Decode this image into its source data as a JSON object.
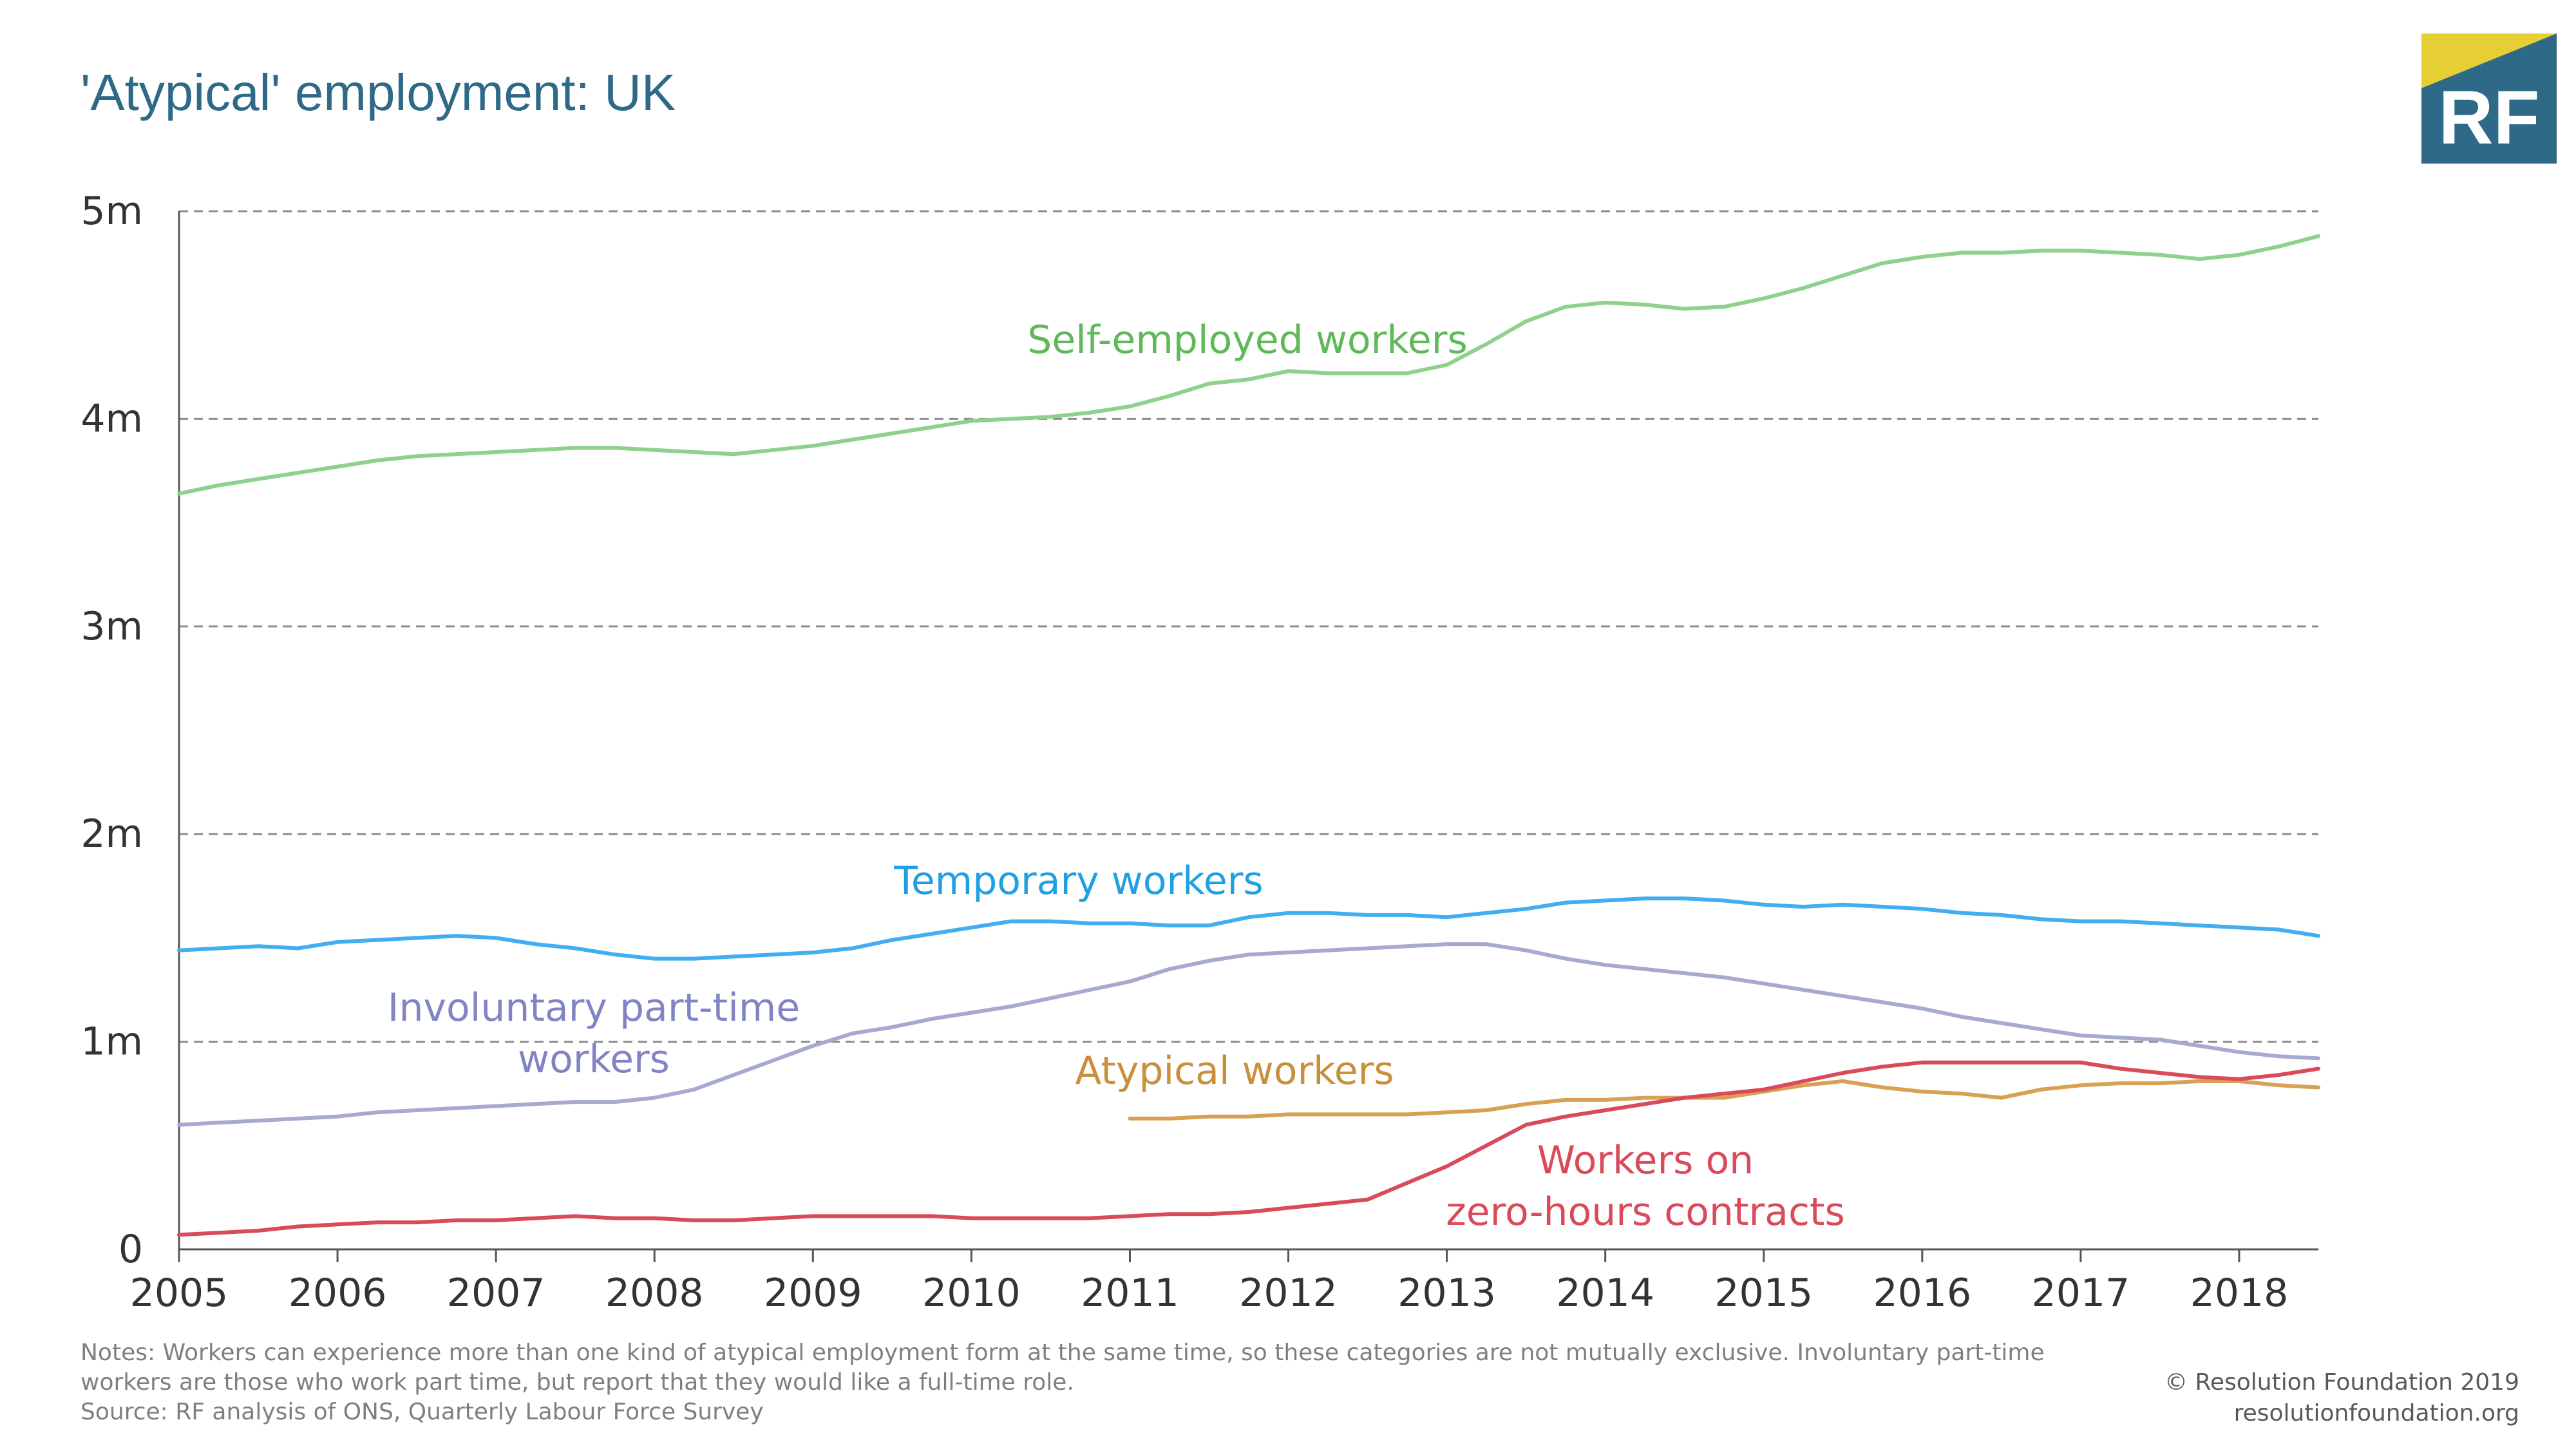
{
  "title": "'Atypical' employment: UK",
  "logo": {
    "text": "RF",
    "colors": {
      "box": "#2e6a87",
      "accent": "#e6cf34"
    }
  },
  "footer": {
    "notes": "Notes: Workers can experience more than one kind of atypical employment form at the same time, so these categories are not mutually exclusive. Involuntary part-time workers are those who work part time, but report that they would like a full-time role.",
    "source": "Source: RF analysis of ONS, Quarterly Labour Force Survey",
    "copyright": "© Resolution Foundation 2019",
    "website": "resolutionfoundation.org"
  },
  "chart_data": {
    "type": "line",
    "title": "'Atypical' employment: UK",
    "xlabel": "",
    "ylabel": "",
    "xlim": [
      2005,
      2018.5
    ],
    "ylim": [
      0,
      5
    ],
    "x_ticks": [
      2005,
      2006,
      2007,
      2008,
      2009,
      2010,
      2011,
      2012,
      2013,
      2014,
      2015,
      2016,
      2017,
      2018
    ],
    "y_ticks": [
      {
        "value": 0,
        "label": "0"
      },
      {
        "value": 1,
        "label": "1m"
      },
      {
        "value": 2,
        "label": "2m"
      },
      {
        "value": 3,
        "label": "3m"
      },
      {
        "value": 4,
        "label": "4m"
      },
      {
        "value": 5,
        "label": "5m"
      }
    ],
    "grid": true,
    "series": [
      {
        "name": "Self-employed workers",
        "label_lines": [
          "Self-employed workers"
        ],
        "color": "#8fd18b",
        "label_color": "#5fb85a",
        "x": [
          2005,
          2005.25,
          2005.5,
          2005.75,
          2006,
          2006.25,
          2006.5,
          2006.75,
          2007,
          2007.25,
          2007.5,
          2007.75,
          2008,
          2008.25,
          2008.5,
          2008.75,
          2009,
          2009.25,
          2009.5,
          2009.75,
          2010,
          2010.25,
          2010.5,
          2010.75,
          2011,
          2011.25,
          2011.5,
          2011.75,
          2012,
          2012.25,
          2012.5,
          2012.75,
          2013,
          2013.25,
          2013.5,
          2013.75,
          2014,
          2014.25,
          2014.5,
          2014.75,
          2015,
          2015.25,
          2015.5,
          2015.75,
          2016,
          2016.25,
          2016.5,
          2016.75,
          2017,
          2017.25,
          2017.5,
          2017.75,
          2018,
          2018.25,
          2018.5
        ],
        "y": [
          3.64,
          3.68,
          3.71,
          3.74,
          3.77,
          3.8,
          3.82,
          3.83,
          3.84,
          3.85,
          3.86,
          3.86,
          3.85,
          3.84,
          3.83,
          3.85,
          3.87,
          3.9,
          3.93,
          3.96,
          3.99,
          4.0,
          4.01,
          4.03,
          4.06,
          4.11,
          4.17,
          4.19,
          4.23,
          4.22,
          4.22,
          4.22,
          4.26,
          4.36,
          4.47,
          4.54,
          4.56,
          4.55,
          4.53,
          4.54,
          4.58,
          4.63,
          4.69,
          4.75,
          4.78,
          4.8,
          4.8,
          4.81,
          4.81,
          4.8,
          4.79,
          4.77,
          4.79,
          4.83,
          4.88
        ]
      },
      {
        "name": "Temporary workers",
        "label_lines": [
          "Temporary workers"
        ],
        "color": "#42aef0",
        "label_color": "#1fa0e4",
        "x": [
          2005,
          2005.25,
          2005.5,
          2005.75,
          2006,
          2006.25,
          2006.5,
          2006.75,
          2007,
          2007.25,
          2007.5,
          2007.75,
          2008,
          2008.25,
          2008.5,
          2008.75,
          2009,
          2009.25,
          2009.5,
          2009.75,
          2010,
          2010.25,
          2010.5,
          2010.75,
          2011,
          2011.25,
          2011.5,
          2011.75,
          2012,
          2012.25,
          2012.5,
          2012.75,
          2013,
          2013.25,
          2013.5,
          2013.75,
          2014,
          2014.25,
          2014.5,
          2014.75,
          2015,
          2015.25,
          2015.5,
          2015.75,
          2016,
          2016.25,
          2016.5,
          2016.75,
          2017,
          2017.25,
          2017.5,
          2017.75,
          2018,
          2018.25,
          2018.5
        ],
        "y": [
          1.44,
          1.45,
          1.46,
          1.45,
          1.48,
          1.49,
          1.5,
          1.51,
          1.5,
          1.47,
          1.45,
          1.42,
          1.4,
          1.4,
          1.41,
          1.42,
          1.43,
          1.45,
          1.49,
          1.52,
          1.55,
          1.58,
          1.58,
          1.57,
          1.57,
          1.56,
          1.56,
          1.6,
          1.62,
          1.62,
          1.61,
          1.61,
          1.6,
          1.62,
          1.64,
          1.67,
          1.68,
          1.69,
          1.69,
          1.68,
          1.66,
          1.65,
          1.66,
          1.65,
          1.64,
          1.62,
          1.61,
          1.59,
          1.58,
          1.58,
          1.57,
          1.56,
          1.55,
          1.54,
          1.51
        ]
      },
      {
        "name": "Involuntary part-time workers",
        "label_lines": [
          "Involuntary part-time",
          "workers"
        ],
        "color": "#a6a9d0",
        "label_color": "#8184c3",
        "x": [
          2005,
          2005.25,
          2005.5,
          2005.75,
          2006,
          2006.25,
          2006.5,
          2006.75,
          2007,
          2007.25,
          2007.5,
          2007.75,
          2008,
          2008.25,
          2008.5,
          2008.75,
          2009,
          2009.25,
          2009.5,
          2009.75,
          2010,
          2010.25,
          2010.5,
          2010.75,
          2011,
          2011.25,
          2011.5,
          2011.75,
          2012,
          2012.25,
          2012.5,
          2012.75,
          2013,
          2013.25,
          2013.5,
          2013.75,
          2014,
          2014.25,
          2014.5,
          2014.75,
          2015,
          2015.25,
          2015.5,
          2015.75,
          2016,
          2016.25,
          2016.5,
          2016.75,
          2017,
          2017.25,
          2017.5,
          2017.75,
          2018,
          2018.25,
          2018.5
        ],
        "y": [
          0.6,
          0.61,
          0.62,
          0.63,
          0.64,
          0.66,
          0.67,
          0.68,
          0.69,
          0.7,
          0.71,
          0.71,
          0.73,
          0.77,
          0.84,
          0.91,
          0.98,
          1.04,
          1.07,
          1.11,
          1.14,
          1.17,
          1.21,
          1.25,
          1.29,
          1.35,
          1.39,
          1.42,
          1.43,
          1.44,
          1.45,
          1.46,
          1.47,
          1.47,
          1.44,
          1.4,
          1.37,
          1.35,
          1.33,
          1.31,
          1.28,
          1.25,
          1.22,
          1.19,
          1.16,
          1.12,
          1.09,
          1.06,
          1.03,
          1.02,
          1.01,
          0.98,
          0.95,
          0.93,
          0.92
        ]
      },
      {
        "name": "Atypical workers",
        "label_lines": [
          "Atypical workers"
        ],
        "color": "#d8a054",
        "label_color": "#c98f3a",
        "x": [
          2011,
          2011.25,
          2011.5,
          2011.75,
          2012,
          2012.25,
          2012.5,
          2012.75,
          2013,
          2013.25,
          2013.5,
          2013.75,
          2014,
          2014.25,
          2014.5,
          2014.75,
          2015,
          2015.25,
          2015.5,
          2015.75,
          2016,
          2016.25,
          2016.5,
          2016.75,
          2017,
          2017.25,
          2017.5,
          2017.75,
          2018,
          2018.25,
          2018.5
        ],
        "y": [
          0.63,
          0.63,
          0.64,
          0.64,
          0.65,
          0.65,
          0.65,
          0.65,
          0.66,
          0.67,
          0.7,
          0.72,
          0.72,
          0.73,
          0.73,
          0.73,
          0.76,
          0.79,
          0.81,
          0.78,
          0.76,
          0.75,
          0.73,
          0.77,
          0.79,
          0.8,
          0.8,
          0.81,
          0.81,
          0.79,
          0.78
        ]
      },
      {
        "name": "Workers on zero-hours contracts",
        "label_lines": [
          "Workers on",
          "zero-hours contracts"
        ],
        "color": "#d94b5a",
        "label_color": "#d94b5a",
        "x": [
          2005,
          2005.25,
          2005.5,
          2005.75,
          2006,
          2006.25,
          2006.5,
          2006.75,
          2007,
          2007.25,
          2007.5,
          2007.75,
          2008,
          2008.25,
          2008.5,
          2008.75,
          2009,
          2009.25,
          2009.5,
          2009.75,
          2010,
          2010.25,
          2010.5,
          2010.75,
          2011,
          2011.25,
          2011.5,
          2011.75,
          2012,
          2012.25,
          2012.5,
          2012.75,
          2013,
          2013.25,
          2013.5,
          2013.75,
          2014,
          2014.25,
          2014.5,
          2014.75,
          2015,
          2015.25,
          2015.5,
          2015.75,
          2016,
          2016.25,
          2016.5,
          2016.75,
          2017,
          2017.25,
          2017.5,
          2017.75,
          2018,
          2018.25,
          2018.5
        ],
        "y": [
          0.07,
          0.08,
          0.09,
          0.11,
          0.12,
          0.13,
          0.13,
          0.14,
          0.14,
          0.15,
          0.16,
          0.15,
          0.15,
          0.14,
          0.14,
          0.15,
          0.16,
          0.16,
          0.16,
          0.16,
          0.15,
          0.15,
          0.15,
          0.15,
          0.16,
          0.17,
          0.17,
          0.18,
          0.2,
          0.22,
          0.24,
          0.32,
          0.4,
          0.5,
          0.6,
          0.64,
          0.67,
          0.7,
          0.73,
          0.75,
          0.77,
          0.81,
          0.85,
          0.88,
          0.9,
          0.9,
          0.9,
          0.9,
          0.9,
          0.87,
          0.85,
          0.83,
          0.82,
          0.84,
          0.87
        ]
      }
    ]
  }
}
